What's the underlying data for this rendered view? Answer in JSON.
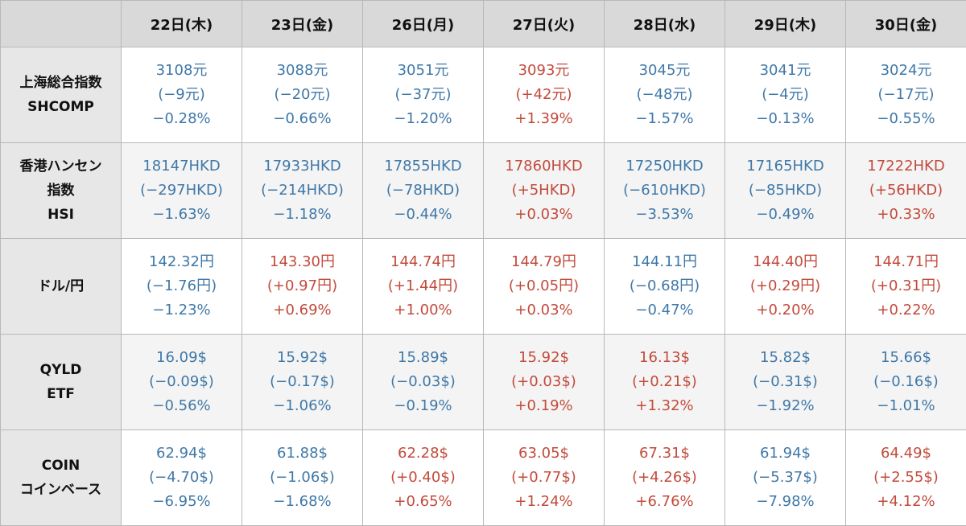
{
  "colors": {
    "down": "#3f78a8",
    "up": "#c24b3c"
  },
  "headers": [
    "22日(木)",
    "23日(金)",
    "26日(月)",
    "27日(火)",
    "28日(水)",
    "29日(木)",
    "30日(金)"
  ],
  "rows": [
    {
      "label": [
        "上海総合指数",
        "SHCOMP"
      ],
      "cells": [
        {
          "dir": "down",
          "lines": [
            "3108元",
            "(−9元)",
            "−0.28%"
          ]
        },
        {
          "dir": "down",
          "lines": [
            "3088元",
            "(−20元)",
            "−0.66%"
          ]
        },
        {
          "dir": "down",
          "lines": [
            "3051元",
            "(−37元)",
            "−1.20%"
          ]
        },
        {
          "dir": "up",
          "lines": [
            "3093元",
            "(+42元)",
            "+1.39%"
          ]
        },
        {
          "dir": "down",
          "lines": [
            "3045元",
            "(−48元)",
            "−1.57%"
          ]
        },
        {
          "dir": "down",
          "lines": [
            "3041元",
            "(−4元)",
            "−0.13%"
          ]
        },
        {
          "dir": "down",
          "lines": [
            "3024元",
            "(−17元)",
            "−0.55%"
          ]
        }
      ]
    },
    {
      "label": [
        "香港ハンセン",
        "指数",
        "HSI"
      ],
      "cells": [
        {
          "dir": "down",
          "lines": [
            "18147HKD",
            "(−297HKD)",
            "−1.63%"
          ]
        },
        {
          "dir": "down",
          "lines": [
            "17933HKD",
            "(−214HKD)",
            "−1.18%"
          ]
        },
        {
          "dir": "down",
          "lines": [
            "17855HKD",
            "(−78HKD)",
            "−0.44%"
          ]
        },
        {
          "dir": "up",
          "lines": [
            "17860HKD",
            "(+5HKD)",
            "+0.03%"
          ]
        },
        {
          "dir": "down",
          "lines": [
            "17250HKD",
            "(−610HKD)",
            "−3.53%"
          ]
        },
        {
          "dir": "down",
          "lines": [
            "17165HKD",
            "(−85HKD)",
            "−0.49%"
          ]
        },
        {
          "dir": "up",
          "lines": [
            "17222HKD",
            "(+56HKD)",
            "+0.33%"
          ]
        }
      ]
    },
    {
      "label": [
        "ドル/円"
      ],
      "cells": [
        {
          "dir": "down",
          "lines": [
            "142.32円",
            "(−1.76円)",
            "−1.23%"
          ]
        },
        {
          "dir": "up",
          "lines": [
            "143.30円",
            "(+0.97円)",
            "+0.69%"
          ]
        },
        {
          "dir": "up",
          "lines": [
            "144.74円",
            "(+1.44円)",
            "+1.00%"
          ]
        },
        {
          "dir": "up",
          "lines": [
            "144.79円",
            "(+0.05円)",
            "+0.03%"
          ]
        },
        {
          "dir": "down",
          "lines": [
            "144.11円",
            "(−0.68円)",
            "−0.47%"
          ]
        },
        {
          "dir": "up",
          "lines": [
            "144.40円",
            "(+0.29円)",
            "+0.20%"
          ]
        },
        {
          "dir": "up",
          "lines": [
            "144.71円",
            "(+0.31円)",
            "+0.22%"
          ]
        }
      ]
    },
    {
      "label": [
        "QYLD",
        "ETF"
      ],
      "cells": [
        {
          "dir": "down",
          "lines": [
            "16.09$",
            "(−0.09$)",
            "−0.56%"
          ]
        },
        {
          "dir": "down",
          "lines": [
            "15.92$",
            "(−0.17$)",
            "−1.06%"
          ]
        },
        {
          "dir": "down",
          "lines": [
            "15.89$",
            "(−0.03$)",
            "−0.19%"
          ]
        },
        {
          "dir": "up",
          "lines": [
            "15.92$",
            "(+0.03$)",
            "+0.19%"
          ]
        },
        {
          "dir": "up",
          "lines": [
            "16.13$",
            "(+0.21$)",
            "+1.32%"
          ]
        },
        {
          "dir": "down",
          "lines": [
            "15.82$",
            "(−0.31$)",
            "−1.92%"
          ]
        },
        {
          "dir": "down",
          "lines": [
            "15.66$",
            "(−0.16$)",
            "−1.01%"
          ]
        }
      ]
    },
    {
      "label": [
        "COIN",
        "コインベース"
      ],
      "cells": [
        {
          "dir": "down",
          "lines": [
            "62.94$",
            "(−4.70$)",
            "−6.95%"
          ]
        },
        {
          "dir": "down",
          "lines": [
            "61.88$",
            "(−1.06$)",
            "−1.68%"
          ]
        },
        {
          "dir": "up",
          "lines": [
            "62.28$",
            "(+0.40$)",
            "+0.65%"
          ]
        },
        {
          "dir": "up",
          "lines": [
            "63.05$",
            "(+0.77$)",
            "+1.24%"
          ]
        },
        {
          "dir": "up",
          "lines": [
            "67.31$",
            "(+4.26$)",
            "+6.76%"
          ]
        },
        {
          "dir": "down",
          "lines": [
            "61.94$",
            "(−5.37$)",
            "−7.98%"
          ]
        },
        {
          "dir": "up",
          "lines": [
            "64.49$",
            "(+2.55$)",
            "+4.12%"
          ]
        }
      ]
    }
  ]
}
